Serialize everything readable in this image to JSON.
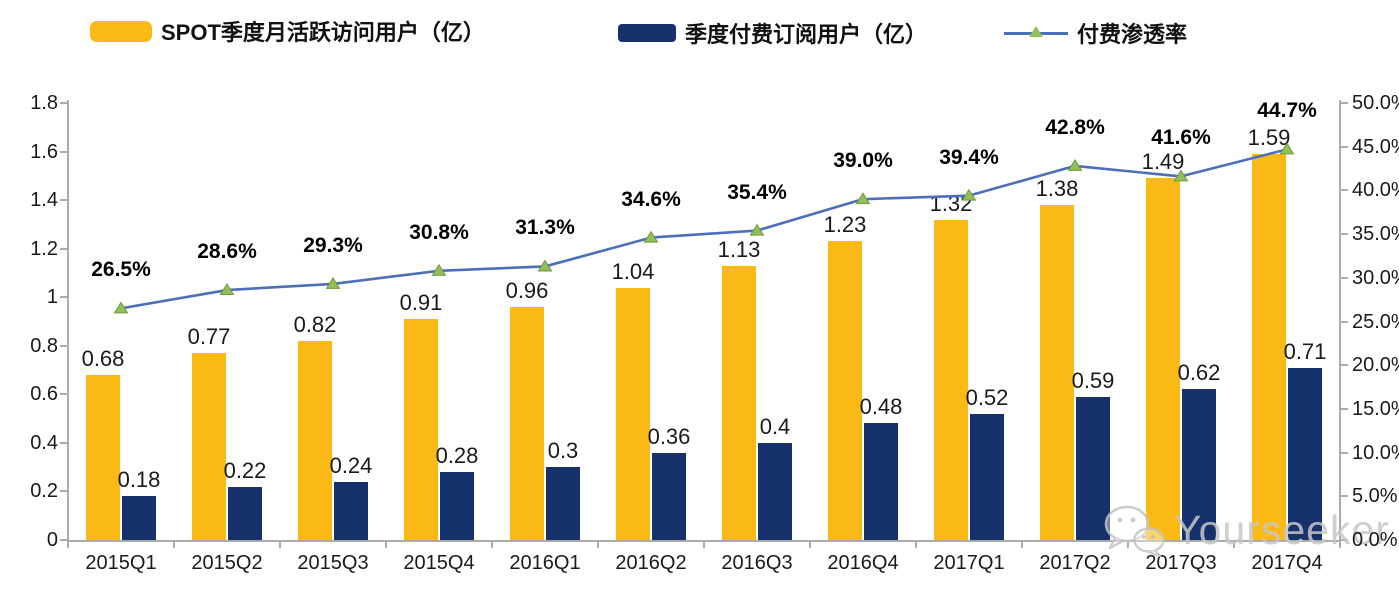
{
  "legend": [
    {
      "label": "SPOT季度月活跃访问用户（亿）"
    },
    {
      "label": "季度付费订阅用户（亿）"
    },
    {
      "label": "付费渗透率"
    }
  ],
  "chart_data": {
    "type": "bar+line",
    "categories": [
      "2015Q1",
      "2015Q2",
      "2015Q3",
      "2015Q4",
      "2016Q1",
      "2016Q2",
      "2016Q3",
      "2016Q4",
      "2017Q1",
      "2017Q2",
      "2017Q3",
      "2017Q4"
    ],
    "series": [
      {
        "name": "SPOT季度月活跃访问用户（亿）",
        "type": "bar",
        "axis": "left",
        "color": "#FBB916",
        "values": [
          0.68,
          0.77,
          0.82,
          0.91,
          0.96,
          1.04,
          1.13,
          1.23,
          1.32,
          1.38,
          1.49,
          1.59
        ],
        "labels": [
          "0.68",
          "0.77",
          "0.82",
          "0.91",
          "0.96",
          "1.04",
          "1.13",
          "1.23",
          "1.32",
          "1.38",
          "1.49",
          "1.59"
        ]
      },
      {
        "name": "季度付费订阅用户（亿）",
        "type": "bar",
        "axis": "left",
        "color": "#16316B",
        "values": [
          0.18,
          0.22,
          0.24,
          0.28,
          0.3,
          0.36,
          0.4,
          0.48,
          0.52,
          0.59,
          0.62,
          0.71
        ],
        "labels": [
          "0.18",
          "0.22",
          "0.24",
          "0.28",
          "0.3",
          "0.36",
          "0.4",
          "0.48",
          "0.52",
          "0.59",
          "0.62",
          "0.71"
        ]
      },
      {
        "name": "付费渗透率",
        "type": "line",
        "axis": "right",
        "color": "#4C6FB7",
        "marker_color": "#93BE59",
        "marker_edge_color": "#6E9C3B",
        "values": [
          26.5,
          28.6,
          29.3,
          30.8,
          31.3,
          34.6,
          35.4,
          39.0,
          39.4,
          42.8,
          41.6,
          44.7
        ],
        "labels": [
          "26.5%",
          "28.6%",
          "29.3%",
          "30.8%",
          "31.3%",
          "34.6%",
          "35.4%",
          "39.0%",
          "39.4%",
          "42.8%",
          "41.6%",
          "44.7%"
        ]
      }
    ],
    "left_axis": {
      "min": 0,
      "max": 1.8,
      "ticks": [
        "0",
        "0.2",
        "0.4",
        "0.6",
        "0.8",
        "1",
        "1.2",
        "1.4",
        "1.6",
        "1.8"
      ]
    },
    "right_axis": {
      "min": 0,
      "max": 50,
      "ticks": [
        "0.0%",
        "5.0%",
        "10.0%",
        "15.0%",
        "20.0%",
        "25.0%",
        "30.0%",
        "35.0%",
        "40.0%",
        "45.0%",
        "50.0%"
      ]
    },
    "grid": "off",
    "legend_position": "top"
  },
  "watermark": {
    "text": "Yourseeker",
    "icon": "wechat-icon"
  }
}
